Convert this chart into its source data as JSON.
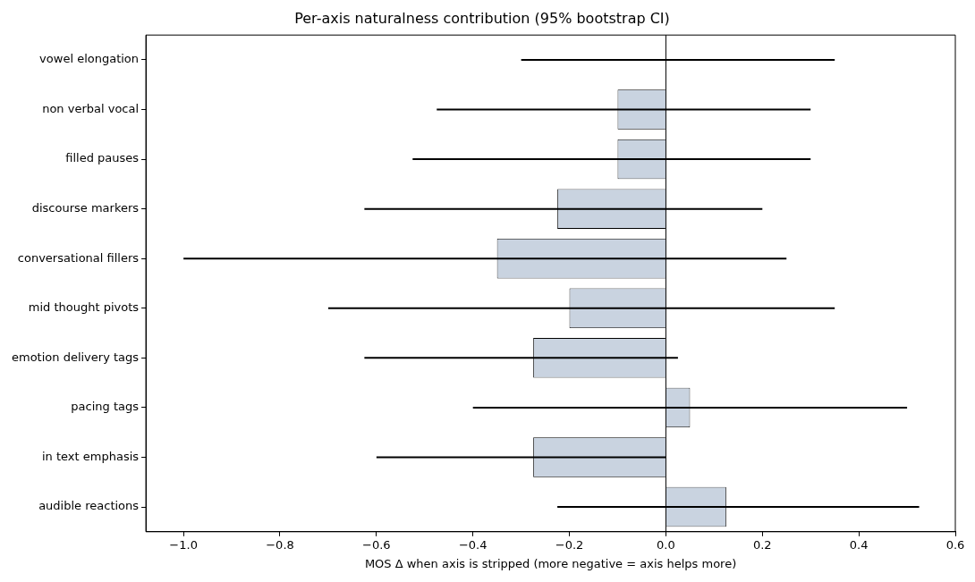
{
  "chart_data": {
    "type": "bar",
    "orientation": "horizontal",
    "title": "Per-axis naturalness contribution (95% bootstrap CI)",
    "xlabel": "MOS Δ when axis is stripped (more negative = axis helps more)",
    "categories": [
      "vowel elongation",
      "non verbal vocal",
      "filled pauses",
      "discourse markers",
      "conversational fillers",
      "mid thought pivots",
      "emotion delivery tags",
      "pacing tags",
      "in text emphasis",
      "audible reactions"
    ],
    "values": [
      0.0,
      -0.1,
      -0.1,
      -0.225,
      -0.35,
      -0.2,
      -0.275,
      0.05,
      -0.275,
      0.125
    ],
    "errors": [
      [
        -0.3,
        0.35
      ],
      [
        -0.475,
        0.3
      ],
      [
        -0.525,
        0.3
      ],
      [
        -0.625,
        0.2
      ],
      [
        -1.0,
        0.25
      ],
      [
        -0.7,
        0.35
      ],
      [
        -0.625,
        0.025
      ],
      [
        -0.4,
        0.5
      ],
      [
        -0.6,
        0.0
      ],
      [
        -0.225,
        0.525
      ]
    ],
    "color": "#c9d3e0",
    "xlim": [
      -1.078,
      0.6
    ],
    "xticks": [
      {
        "value": -1.0,
        "label": "−1.0"
      },
      {
        "value": -0.8,
        "label": "−0.8"
      },
      {
        "value": -0.6,
        "label": "−0.6"
      },
      {
        "value": -0.4,
        "label": "−0.4"
      },
      {
        "value": -0.2,
        "label": "−0.2"
      },
      {
        "value": 0,
        "label": "0.0"
      },
      {
        "value": 0.2,
        "label": "0.2"
      },
      {
        "value": 0.4,
        "label": "0.4"
      },
      {
        "value": 0.6,
        "label": "0.6"
      }
    ],
    "ref_lines": [
      {
        "axis": "x",
        "value": 0,
        "color": "#000000"
      }
    ],
    "grid": false,
    "legend": false
  }
}
